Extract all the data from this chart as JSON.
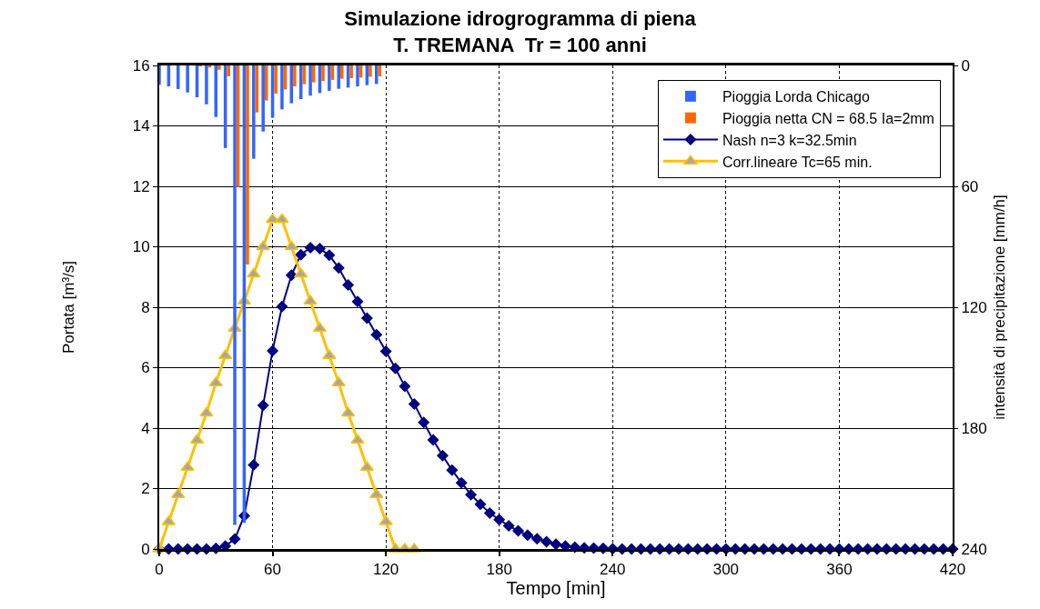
{
  "chart_data": {
    "type": "line",
    "title": "Simulazione idrogrogramma di piena\nT. TREMANA  Tr = 100 anni",
    "xlabel": "Tempo [min]",
    "ylabel": "Portata [m³/s]",
    "y2label": "intensità di precipitazione [mm/h]",
    "xlim": [
      0,
      420
    ],
    "xticks": [
      0,
      60,
      120,
      180,
      240,
      300,
      360,
      420
    ],
    "ylim": [
      0,
      16
    ],
    "yticks": [
      0,
      2,
      4,
      6,
      8,
      10,
      12,
      14,
      16
    ],
    "y2lim": [
      240,
      0
    ],
    "y2ticks": [
      0,
      60,
      120,
      180,
      240
    ],
    "grid": true,
    "legend": "top right",
    "series": [
      {
        "name": "Pioggia Lorda Chicago",
        "type": "bar",
        "axis": "y2",
        "color": "#3366ff",
        "x": [
          0,
          5,
          10,
          15,
          20,
          25,
          30,
          35,
          40,
          45,
          50,
          55,
          60,
          65,
          70,
          75,
          80,
          85,
          90,
          95,
          100,
          105,
          110,
          115
        ],
        "values": [
          9.6,
          10.4,
          11.7,
          13.4,
          15.8,
          19.3,
          25.6,
          41,
          228,
          227,
          46.3,
          32.8,
          26,
          21.8,
          18.8,
          16.7,
          15,
          13.7,
          12.6,
          11.6,
          11,
          10.4,
          9.8,
          9.2
        ]
      },
      {
        "name": "Pioggia netta CN = 68.5 Ia=2mm",
        "type": "bar",
        "axis": "y2",
        "color": "#ff6600",
        "x": [
          0,
          5,
          10,
          15,
          20,
          25,
          30,
          35,
          40,
          45,
          50,
          55,
          60,
          65,
          70,
          75,
          80,
          85,
          90,
          95,
          100,
          105,
          110,
          115
        ],
        "values": [
          0,
          0,
          0,
          0,
          0.5,
          1,
          2.1,
          5.4,
          60.3,
          98.8,
          23.3,
          17.4,
          14,
          11.9,
          10.4,
          9.3,
          8.4,
          7.8,
          7.2,
          6.6,
          6.3,
          6,
          5.6,
          5.4
        ]
      },
      {
        "name": "Nash n=3 k=32.5min",
        "color": "#000080",
        "marker": "diamond",
        "x": [
          0,
          5,
          10,
          15,
          20,
          25,
          30,
          35,
          40,
          45,
          50,
          55,
          60,
          65,
          70,
          75,
          80,
          85,
          90,
          95,
          100,
          105,
          110,
          115,
          120,
          125,
          130,
          135,
          140,
          145,
          150,
          155,
          160,
          165,
          170,
          175,
          180,
          185,
          190,
          195,
          200,
          205,
          210,
          215,
          220,
          225,
          230,
          235,
          240,
          245,
          250,
          255,
          260,
          265,
          270,
          275,
          280,
          285,
          290,
          295,
          300,
          305,
          310,
          315,
          320,
          325,
          330,
          335,
          340,
          345,
          350,
          355,
          360,
          365,
          370,
          375,
          380,
          385,
          390,
          395,
          400,
          405,
          410,
          415,
          420
        ],
        "values": [
          0,
          0,
          0,
          0,
          0,
          0,
          0.02,
          0.1,
          0.33,
          1.1,
          2.78,
          4.75,
          6.56,
          8.02,
          9.06,
          9.74,
          9.97,
          9.94,
          9.72,
          9.3,
          8.74,
          8.19,
          7.64,
          7.09,
          6.54,
          5.98,
          5.38,
          4.8,
          4.19,
          3.61,
          3.09,
          2.61,
          2.19,
          1.8,
          1.48,
          1.19,
          0.97,
          0.77,
          0.6,
          0.46,
          0.34,
          0.24,
          0.16,
          0.1,
          0.06,
          0.04,
          0.03,
          0.02,
          0.01,
          0,
          0,
          0,
          0,
          0,
          0,
          0,
          0,
          0,
          0,
          0,
          0,
          0,
          0,
          0,
          0,
          0,
          0,
          0,
          0,
          0,
          0,
          0,
          0,
          0,
          0,
          0,
          0,
          0,
          0,
          0,
          0,
          0,
          0,
          0,
          0
        ]
      },
      {
        "name": "Corr.lineare Tc=65 min.",
        "color": "#ffc000",
        "marker": "triangle",
        "x": [
          0,
          5,
          10,
          15,
          20,
          25,
          30,
          35,
          40,
          45,
          50,
          55,
          60,
          65,
          70,
          75,
          80,
          85,
          90,
          95,
          100,
          105,
          110,
          115,
          120,
          125,
          130,
          135
        ],
        "values": [
          0,
          0.9,
          1.8,
          2.7,
          3.6,
          4.5,
          5.5,
          6.4,
          7.3,
          8.2,
          9.1,
          10,
          10.9,
          10.9,
          10,
          9.1,
          8.2,
          7.3,
          6.4,
          5.5,
          4.5,
          3.6,
          2.7,
          1.8,
          0.9,
          0,
          0,
          0
        ]
      }
    ]
  }
}
